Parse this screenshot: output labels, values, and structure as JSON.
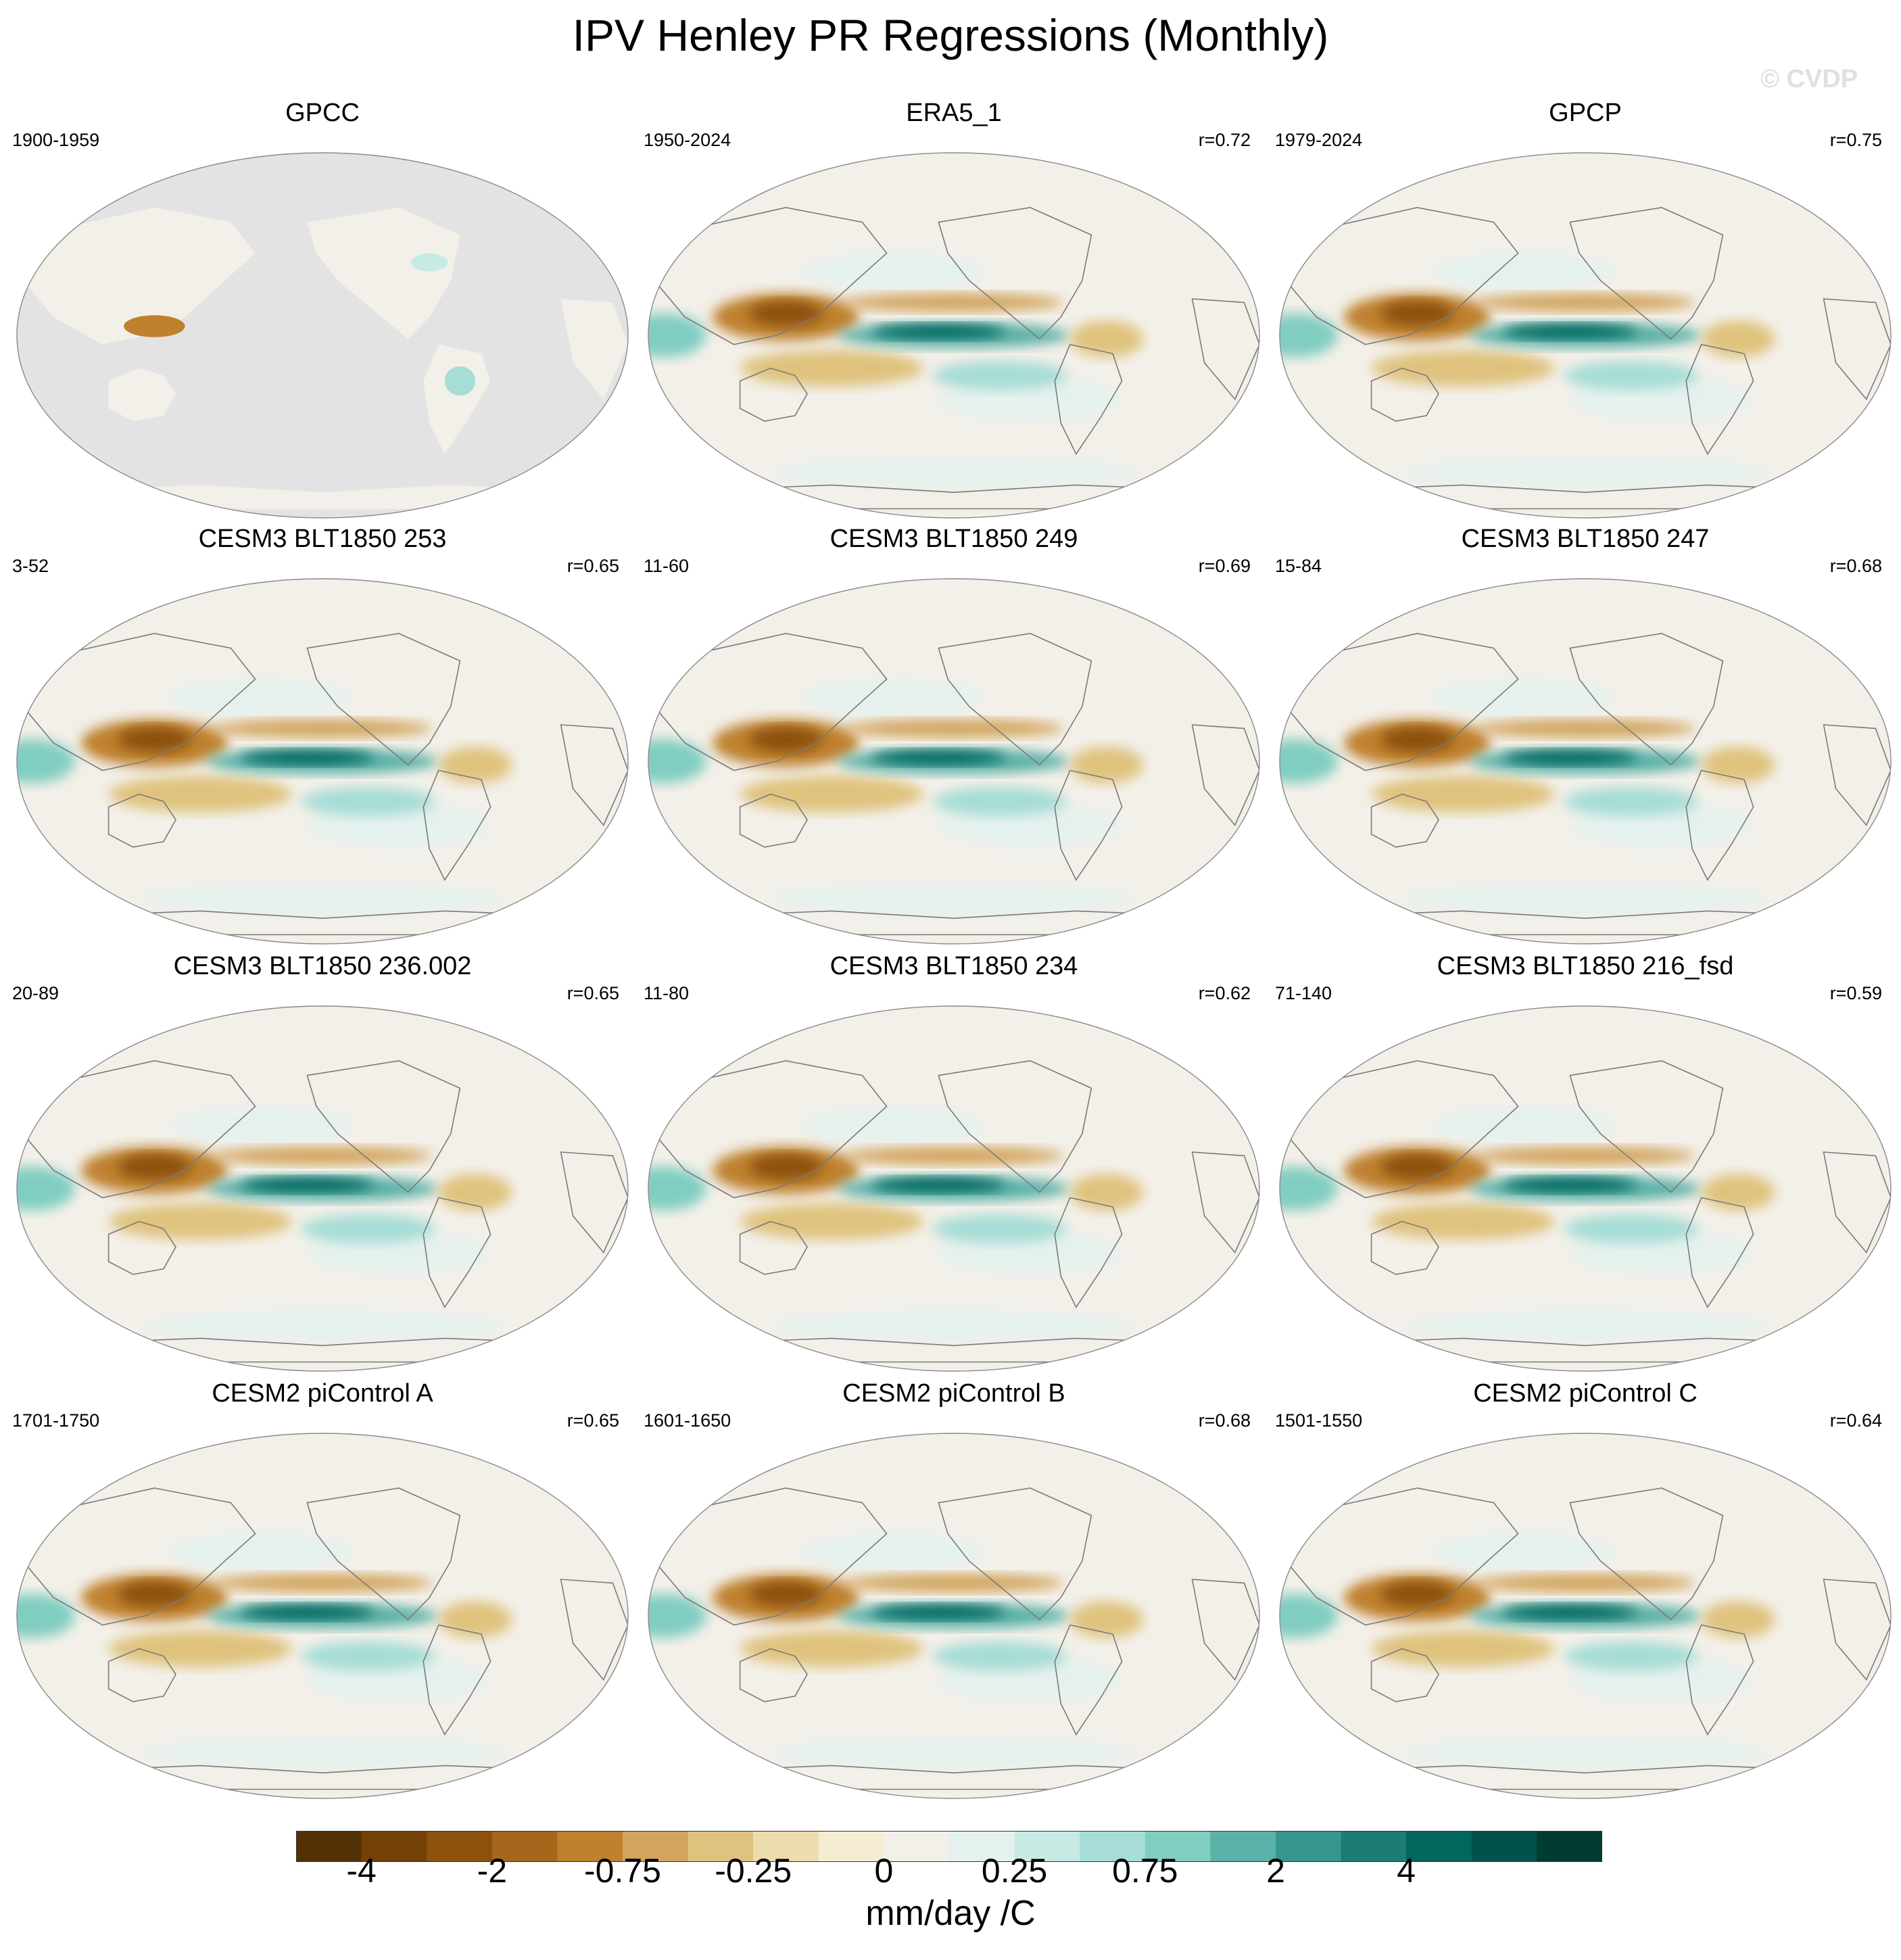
{
  "figure": {
    "title": "IPV Henley PR Regressions (Monthly)",
    "watermark": "© CVDP",
    "colorbar_unit": "mm/day /C"
  },
  "chart_data": {
    "type": "heatmap",
    "title": "IPV Henley PR Regressions (Monthly)",
    "variable": "precipitation regression onto IPV Henley index",
    "units": "mm/day /C",
    "projection": "Robinson (Pacific-centered)",
    "colorbar": {
      "tick_labels": [
        "-4",
        "-2",
        "-0.75",
        "-0.25",
        "0",
        "0.25",
        "0.75",
        "2",
        "4"
      ],
      "colors": [
        "#543005",
        "#744107",
        "#8c510a",
        "#a6661c",
        "#bf812d",
        "#d2a45d",
        "#dfc27d",
        "#eddcae",
        "#f6ecd2",
        "#f3f0e9",
        "#e5f1ee",
        "#c7eae5",
        "#a6ddd6",
        "#80cdc1",
        "#5ab1a7",
        "#35978f",
        "#1b7d75",
        "#01665e",
        "#00524a",
        "#003c30"
      ]
    },
    "panels": [
      {
        "name": "GPCC",
        "period": "1900-1959",
        "corr": "",
        "pattern": "land-only"
      },
      {
        "name": "ERA5_1",
        "period": "1950-2024",
        "corr": "r=0.72",
        "pattern": "enso"
      },
      {
        "name": "GPCP",
        "period": "1979-2024",
        "corr": "r=0.75",
        "pattern": "enso"
      },
      {
        "name": "CESM3 BLT1850 253",
        "period": "3-52",
        "corr": "r=0.65",
        "pattern": "enso"
      },
      {
        "name": "CESM3 BLT1850 249",
        "period": "11-60",
        "corr": "r=0.69",
        "pattern": "enso"
      },
      {
        "name": "CESM3 BLT1850 247",
        "period": "15-84",
        "corr": "r=0.68",
        "pattern": "enso"
      },
      {
        "name": "CESM3 BLT1850 236.002",
        "period": "20-89",
        "corr": "r=0.65",
        "pattern": "enso"
      },
      {
        "name": "CESM3 BLT1850 234",
        "period": "11-80",
        "corr": "r=0.62",
        "pattern": "enso"
      },
      {
        "name": "CESM3 BLT1850 216_fsd",
        "period": "71-140",
        "corr": "r=0.59",
        "pattern": "enso"
      },
      {
        "name": "CESM2 piControl A",
        "period": "1701-1750",
        "corr": "r=0.65",
        "pattern": "enso"
      },
      {
        "name": "CESM2 piControl B",
        "period": "1601-1650",
        "corr": "r=0.68",
        "pattern": "enso"
      },
      {
        "name": "CESM2 piControl C",
        "period": "1501-1550",
        "corr": "r=0.64",
        "pattern": "enso"
      }
    ]
  }
}
